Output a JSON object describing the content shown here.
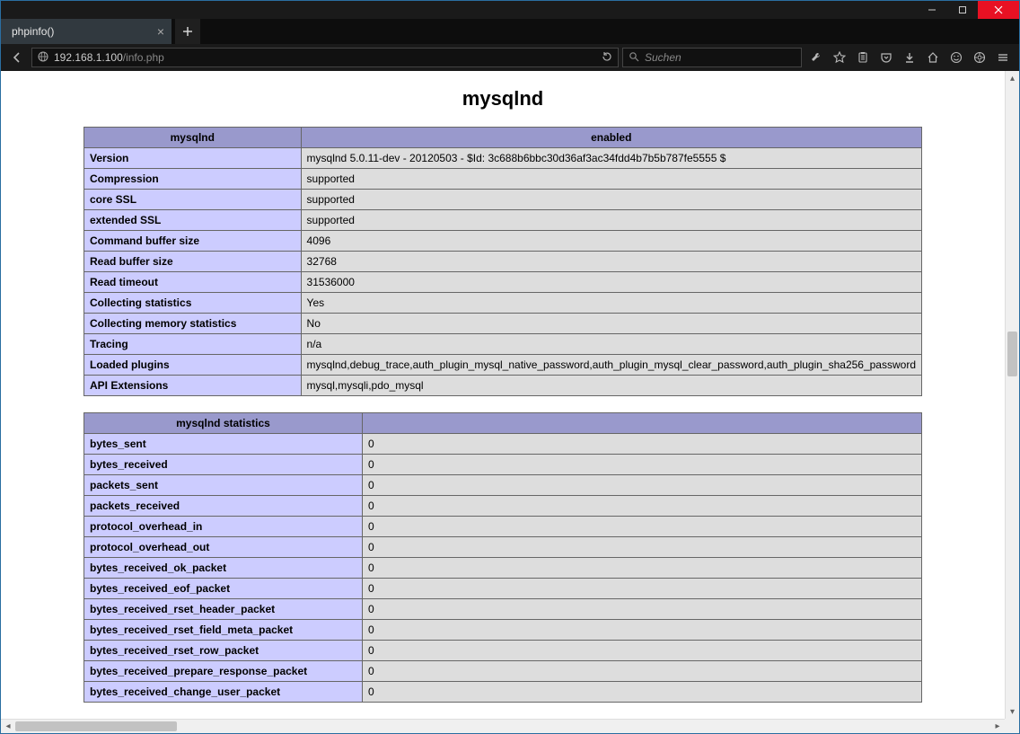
{
  "window": {
    "tab_title": "phpinfo()",
    "url_host": "192.168.1.100",
    "url_path": "/info.php",
    "search_placeholder": "Suchen"
  },
  "page": {
    "heading": "mysqlnd",
    "table1": {
      "headers": [
        "mysqlnd",
        "enabled"
      ],
      "rows": [
        [
          "Version",
          "mysqlnd 5.0.11-dev - 20120503 - $Id: 3c688b6bbc30d36af3ac34fdd4b7b5b787fe5555 $"
        ],
        [
          "Compression",
          "supported"
        ],
        [
          "core SSL",
          "supported"
        ],
        [
          "extended SSL",
          "supported"
        ],
        [
          "Command buffer size",
          "4096"
        ],
        [
          "Read buffer size",
          "32768"
        ],
        [
          "Read timeout",
          "31536000"
        ],
        [
          "Collecting statistics",
          "Yes"
        ],
        [
          "Collecting memory statistics",
          "No"
        ],
        [
          "Tracing",
          "n/a"
        ],
        [
          "Loaded plugins",
          "mysqlnd,debug_trace,auth_plugin_mysql_native_password,auth_plugin_mysql_clear_password,auth_plugin_sha256_password"
        ],
        [
          "API Extensions",
          "mysql,mysqli,pdo_mysql"
        ]
      ]
    },
    "table2": {
      "headers": [
        "mysqlnd statistics",
        ""
      ],
      "rows": [
        [
          "bytes_sent",
          "0"
        ],
        [
          "bytes_received",
          "0"
        ],
        [
          "packets_sent",
          "0"
        ],
        [
          "packets_received",
          "0"
        ],
        [
          "protocol_overhead_in",
          "0"
        ],
        [
          "protocol_overhead_out",
          "0"
        ],
        [
          "bytes_received_ok_packet",
          "0"
        ],
        [
          "bytes_received_eof_packet",
          "0"
        ],
        [
          "bytes_received_rset_header_packet",
          "0"
        ],
        [
          "bytes_received_rset_field_meta_packet",
          "0"
        ],
        [
          "bytes_received_rset_row_packet",
          "0"
        ],
        [
          "bytes_received_prepare_response_packet",
          "0"
        ],
        [
          "bytes_received_change_user_packet",
          "0"
        ]
      ]
    }
  },
  "colors": {
    "th_bg": "#9999cc",
    "e_bg": "#ccccff",
    "v_bg": "#dddddd",
    "frame_bg": "#156192",
    "close_bg": "#e81123"
  }
}
